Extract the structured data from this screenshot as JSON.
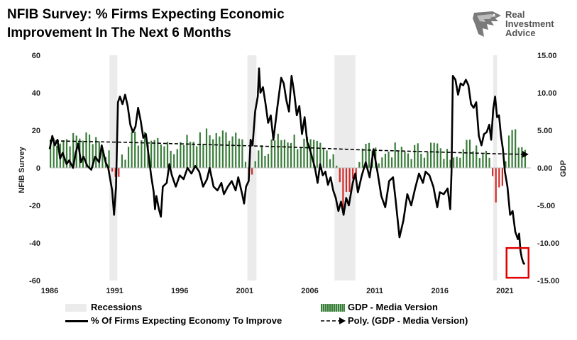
{
  "logo": {
    "brand_lines": [
      "Real",
      "Investment",
      "Advice"
    ]
  },
  "colors": {
    "recession": "#ebebeb",
    "gdp_pos": "#3a7d3a",
    "gdp_neg": "#d42a2a",
    "survey": "#000000",
    "highlight": "#e00000"
  },
  "chart_data": {
    "type": "line",
    "title": "NFIB Survey:  % Firms Expecting Economic\nImprovement In The  Next 6 Months",
    "ylabel": "NFIB Survey",
    "y2label": "GDP",
    "ylim": [
      -60,
      60
    ],
    "y2lim": [
      -15,
      15
    ],
    "xlim": [
      1986,
      2023
    ],
    "x_ticks": [
      "1986",
      "1991",
      "1996",
      "2001",
      "2006",
      "2011",
      "2016",
      "2021"
    ],
    "y_ticks": [
      "60",
      "40",
      "20",
      "0",
      "-20",
      "-40",
      "-60"
    ],
    "y2_ticks": [
      "15.00",
      "10.00",
      "5.00",
      "0.00",
      "-5.00",
      "-10.00",
      "-15.00"
    ],
    "recessions": [
      [
        1990.6,
        1991.2
      ],
      [
        2001.2,
        2001.9
      ],
      [
        2007.9,
        2009.5
      ],
      [
        2020.1,
        2020.4
      ]
    ],
    "legend": {
      "recessions": "Recessions",
      "gdp": "GDP - Media Version",
      "survey": "% Of Firms Expecting Economy To Improve",
      "poly": "Poly. (GDP - Media Version)"
    },
    "series": [
      {
        "name": "% Of Firms Expecting Economy To Improve",
        "axis": "left",
        "points": [
          [
            1986.0,
            10
          ],
          [
            1986.2,
            17
          ],
          [
            1986.4,
            12
          ],
          [
            1986.6,
            15
          ],
          [
            1986.8,
            5
          ],
          [
            1987.0,
            8
          ],
          [
            1987.3,
            2
          ],
          [
            1987.5,
            4
          ],
          [
            1987.8,
            0
          ],
          [
            1988.0,
            8
          ],
          [
            1988.2,
            13
          ],
          [
            1988.4,
            3
          ],
          [
            1988.6,
            6
          ],
          [
            1988.9,
            1
          ],
          [
            1989.2,
            -1
          ],
          [
            1989.5,
            6
          ],
          [
            1989.8,
            3
          ],
          [
            1990.0,
            12
          ],
          [
            1990.3,
            3
          ],
          [
            1990.5,
            0
          ],
          [
            1990.8,
            -12
          ],
          [
            1990.95,
            -25
          ],
          [
            1991.1,
            -10
          ],
          [
            1991.25,
            35
          ],
          [
            1991.4,
            38
          ],
          [
            1991.6,
            34
          ],
          [
            1991.8,
            39
          ],
          [
            1992.0,
            33
          ],
          [
            1992.2,
            23
          ],
          [
            1992.4,
            19
          ],
          [
            1992.6,
            22
          ],
          [
            1992.8,
            32
          ],
          [
            1993.0,
            25
          ],
          [
            1993.2,
            16
          ],
          [
            1993.4,
            18
          ],
          [
            1993.6,
            7
          ],
          [
            1993.8,
            -4
          ],
          [
            1994.0,
            -13
          ],
          [
            1994.1,
            -22
          ],
          [
            1994.2,
            -15
          ],
          [
            1994.4,
            -22
          ],
          [
            1994.55,
            -26
          ],
          [
            1994.7,
            -10
          ],
          [
            1995.0,
            -8
          ],
          [
            1995.2,
            2
          ],
          [
            1995.4,
            -4
          ],
          [
            1995.7,
            -10
          ],
          [
            1996.0,
            -4
          ],
          [
            1996.3,
            -6
          ],
          [
            1996.6,
            0
          ],
          [
            1996.9,
            -3
          ],
          [
            1997.2,
            1
          ],
          [
            1997.5,
            -2
          ],
          [
            1997.8,
            -10
          ],
          [
            1998.1,
            -6
          ],
          [
            1998.3,
            0
          ],
          [
            1998.6,
            -10
          ],
          [
            1998.9,
            -12
          ],
          [
            1999.2,
            -8
          ],
          [
            1999.4,
            -14
          ],
          [
            1999.7,
            -10
          ],
          [
            2000.0,
            -7
          ],
          [
            2000.3,
            -12
          ],
          [
            2000.5,
            -5
          ],
          [
            2000.8,
            -14
          ],
          [
            2000.95,
            -19
          ],
          [
            2001.1,
            -10
          ],
          [
            2001.3,
            -7
          ],
          [
            2001.45,
            15
          ],
          [
            2001.6,
            12
          ],
          [
            2001.8,
            30
          ],
          [
            2002.0,
            38
          ],
          [
            2002.1,
            53
          ],
          [
            2002.2,
            40
          ],
          [
            2002.4,
            43
          ],
          [
            2002.6,
            34
          ],
          [
            2002.8,
            24
          ],
          [
            2003.0,
            28
          ],
          [
            2003.2,
            15
          ],
          [
            2003.5,
            32
          ],
          [
            2003.8,
            48
          ],
          [
            2004.0,
            45
          ],
          [
            2004.2,
            36
          ],
          [
            2004.4,
            30
          ],
          [
            2004.6,
            49
          ],
          [
            2004.8,
            40
          ],
          [
            2005.0,
            28
          ],
          [
            2005.2,
            33
          ],
          [
            2005.4,
            18
          ],
          [
            2005.6,
            27
          ],
          [
            2005.8,
            14
          ],
          [
            2006.0,
            10
          ],
          [
            2006.2,
            5
          ],
          [
            2006.4,
            0
          ],
          [
            2006.6,
            -8
          ],
          [
            2006.8,
            2
          ],
          [
            2007.0,
            -4
          ],
          [
            2007.2,
            -2
          ],
          [
            2007.4,
            -9
          ],
          [
            2007.6,
            -5
          ],
          [
            2007.8,
            -12
          ],
          [
            2008.0,
            -16
          ],
          [
            2008.2,
            -23
          ],
          [
            2008.4,
            -18
          ],
          [
            2008.6,
            -25
          ],
          [
            2008.8,
            -16
          ],
          [
            2009.0,
            -20
          ],
          [
            2009.3,
            -8
          ],
          [
            2009.5,
            -3
          ],
          [
            2009.7,
            -13
          ],
          [
            2010.0,
            -4
          ],
          [
            2010.3,
            3
          ],
          [
            2010.6,
            -5
          ],
          [
            2010.9,
            10
          ],
          [
            2011.2,
            -2
          ],
          [
            2011.5,
            -15
          ],
          [
            2011.8,
            -21
          ],
          [
            2012.1,
            -7
          ],
          [
            2012.4,
            -5
          ],
          [
            2012.6,
            -17
          ],
          [
            2012.9,
            -37
          ],
          [
            2013.2,
            -28
          ],
          [
            2013.5,
            -14
          ],
          [
            2013.8,
            -20
          ],
          [
            2014.1,
            -11
          ],
          [
            2014.4,
            -3
          ],
          [
            2014.7,
            -8
          ],
          [
            2014.9,
            -2
          ],
          [
            2015.2,
            -4
          ],
          [
            2015.5,
            -10
          ],
          [
            2015.8,
            -21
          ],
          [
            2016.0,
            -13
          ],
          [
            2016.3,
            -14
          ],
          [
            2016.6,
            -11
          ],
          [
            2016.8,
            -22
          ],
          [
            2016.9,
            -2
          ],
          [
            2017.0,
            49
          ],
          [
            2017.2,
            47
          ],
          [
            2017.4,
            39
          ],
          [
            2017.6,
            45
          ],
          [
            2017.8,
            44
          ],
          [
            2018.0,
            47
          ],
          [
            2018.2,
            44
          ],
          [
            2018.4,
            34
          ],
          [
            2018.6,
            32
          ],
          [
            2018.8,
            35
          ],
          [
            2019.0,
            17
          ],
          [
            2019.2,
            12
          ],
          [
            2019.4,
            18
          ],
          [
            2019.6,
            19
          ],
          [
            2019.8,
            23
          ],
          [
            2019.95,
            15
          ],
          [
            2020.1,
            31
          ],
          [
            2020.25,
            38
          ],
          [
            2020.4,
            27
          ],
          [
            2020.55,
            28
          ],
          [
            2020.7,
            17
          ],
          [
            2020.85,
            10
          ],
          [
            2021.0,
            -2
          ],
          [
            2021.2,
            -10
          ],
          [
            2021.4,
            -25
          ],
          [
            2021.6,
            -23
          ],
          [
            2021.8,
            -34
          ],
          [
            2022.0,
            -38
          ],
          [
            2022.1,
            -35
          ],
          [
            2022.2,
            -44
          ],
          [
            2022.3,
            -48
          ],
          [
            2022.45,
            -51
          ],
          [
            2022.55,
            -51
          ]
        ]
      },
      {
        "name": "GDP - Media Version",
        "axis": "right",
        "type": "bar",
        "segments": [
          [
            1986.0,
            3.8
          ],
          [
            1988.0,
            4.1
          ],
          [
            1990.0,
            2.2
          ],
          [
            1990.75,
            -0.5
          ],
          [
            1990.95,
            -1.2
          ],
          [
            1991.3,
            1.8
          ],
          [
            1992.0,
            3.8
          ],
          [
            1994.0,
            3.6
          ],
          [
            1995.0,
            2.4
          ],
          [
            1996.0,
            3.8
          ],
          [
            1998.0,
            4.4
          ],
          [
            2000.0,
            4.8
          ],
          [
            2000.8,
            1.0
          ],
          [
            2001.1,
            -0.9
          ],
          [
            2001.6,
            0.5
          ],
          [
            2002.0,
            2.0
          ],
          [
            2003.0,
            3.8
          ],
          [
            2004.0,
            3.9
          ],
          [
            2005.0,
            3.3
          ],
          [
            2006.0,
            2.8
          ],
          [
            2007.0,
            2.2
          ],
          [
            2007.9,
            0.5
          ],
          [
            2008.15,
            -1.9
          ],
          [
            2008.45,
            -5.5
          ],
          [
            2008.75,
            -3.2
          ],
          [
            2009.2,
            -1.5
          ],
          [
            2009.55,
            1.4
          ],
          [
            2010.0,
            2.8
          ],
          [
            2011.0,
            1.7
          ],
          [
            2012.0,
            2.3
          ],
          [
            2013.0,
            2.0
          ],
          [
            2014.0,
            2.4
          ],
          [
            2015.0,
            2.9
          ],
          [
            2016.0,
            1.8
          ],
          [
            2017.0,
            2.4
          ],
          [
            2018.0,
            3.0
          ],
          [
            2019.0,
            2.3
          ],
          [
            2019.95,
            -1.1
          ],
          [
            2020.1,
            -9.1
          ],
          [
            2020.2,
            -4.6
          ],
          [
            2020.5,
            -2.6
          ],
          [
            2020.75,
            -2.4
          ],
          [
            2021.0,
            1.2
          ],
          [
            2021.1,
            12.2
          ],
          [
            2021.25,
            4.9
          ],
          [
            2021.5,
            5.5
          ],
          [
            2021.75,
            4.5
          ],
          [
            2022.0,
            3.5
          ],
          [
            2022.55,
            3.0
          ]
        ]
      },
      {
        "name": "Poly. (GDP - Media Version)",
        "axis": "right",
        "points": [
          [
            1986.0,
            3.6
          ],
          [
            1992.0,
            3.4
          ],
          [
            1998.0,
            3.1
          ],
          [
            2004.0,
            2.8
          ],
          [
            2010.0,
            2.4
          ],
          [
            2016.0,
            2.1
          ],
          [
            2020.0,
            1.9
          ],
          [
            2022.5,
            1.8
          ]
        ]
      }
    ]
  }
}
